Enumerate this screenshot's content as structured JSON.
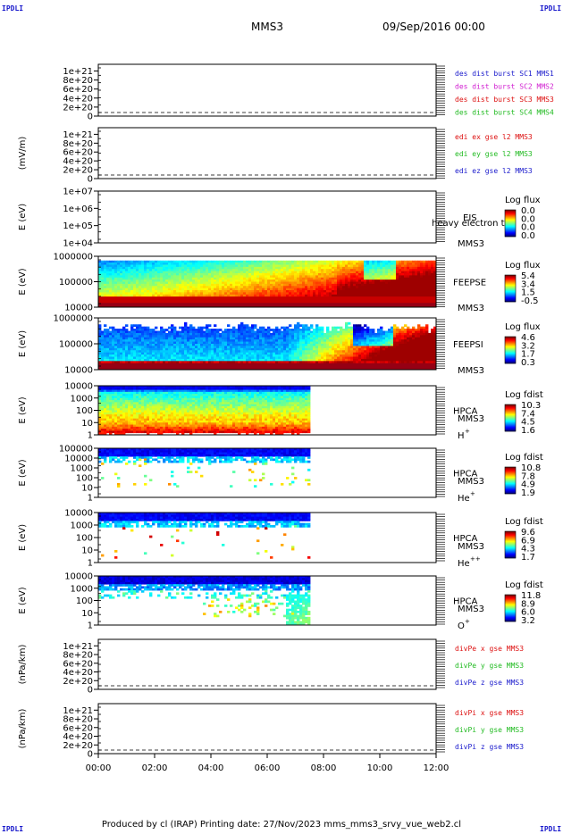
{
  "page": {
    "corner_tl": "IPDLI",
    "corner_tr": "IPDLI",
    "corner_bl": "IPDLI",
    "corner_br": "IPDLI",
    "spacecraft": "MMS3",
    "datetime": "09/Sep/2016 00:00",
    "footer": "Produced by cl (IRAP)   Printing date: 27/Nov/2023   mms_mms3_srvy_vue_web2.cl"
  },
  "colors": {
    "blue": "#1a1acc",
    "magenta": "#d11fd1",
    "red": "#dd1111",
    "green": "#22bb22"
  },
  "chart_data": {
    "type": "heatmap",
    "x_tick_labels": [
      "00:00",
      "02:00",
      "04:00",
      "06:00",
      "08:00",
      "10:00",
      "12:00"
    ],
    "x_range_hours": [
      0,
      12
    ],
    "data_end_hour": 7.5,
    "panels": [
      {
        "id": "des_dist",
        "kind": "line",
        "ylabel": "",
        "ytick_labels": [
          "1e+21",
          "8e+20",
          "6e+20",
          "4e+20",
          "2e+20",
          "0"
        ],
        "ytick_values": [
          1e+21,
          8e+20,
          6e+20,
          4e+20,
          2e+20,
          0
        ],
        "legend": [
          {
            "text": "des dist burst SC1 MMS1",
            "color": "blue"
          },
          {
            "text": "des dist burst SC2 MMS2",
            "color": "magenta"
          },
          {
            "text": "des dist burst SC3 MMS3",
            "color": "red"
          },
          {
            "text": "des dist burst SC4 MMS4",
            "color": "green"
          }
        ]
      },
      {
        "id": "edi",
        "kind": "line",
        "ylabel": "(mV/m)",
        "ytick_labels": [
          "1e+21",
          "8e+20",
          "6e+20",
          "4e+20",
          "2e+20",
          "0"
        ],
        "ytick_values": [
          1e+21,
          8e+20,
          6e+20,
          4e+20,
          2e+20,
          0
        ],
        "legend": [
          {
            "text": "edi ex gse l2 MMS3",
            "color": "red"
          },
          {
            "text": "edi ey gse l2 MMS3",
            "color": "green"
          },
          {
            "text": "edi ez gse l2 MMS3",
            "color": "blue"
          }
        ]
      },
      {
        "id": "eis",
        "kind": "empty_spec",
        "ylabel": "E (eV)",
        "log": true,
        "ytick_labels": [
          "1e+07",
          "1e+06",
          "1e+05",
          "1e+04"
        ],
        "ytick_values": [
          10000000.0,
          1000000.0,
          100000.0,
          10000.0
        ],
        "instrument": "EIS",
        "instrument_extra": "heavy electron to",
        "spacecraft": "MMS3",
        "colorbar_title": "Log flux",
        "colorbar_labels": [
          "0.0",
          "0.0",
          "0.0",
          "0.0"
        ]
      },
      {
        "id": "feepse",
        "kind": "spectrogram",
        "pattern": "feeps_e",
        "ylabel": "E (eV)",
        "log": true,
        "ytick_labels": [
          "1000000",
          "100000",
          "10000"
        ],
        "ytick_values": [
          1000000.0,
          100000.0,
          10000.0
        ],
        "instrument": "FEEPSE",
        "spacecraft": "MMS3",
        "colorbar_title": "Log flux",
        "colorbar_labels": [
          "5.4",
          "3.4",
          "1.5",
          "-0.5"
        ]
      },
      {
        "id": "feepsi",
        "kind": "spectrogram",
        "pattern": "feeps_i",
        "ylabel": "E (eV)",
        "log": true,
        "ytick_labels": [
          "1000000",
          "100000",
          "10000"
        ],
        "ytick_values": [
          1000000.0,
          100000.0,
          10000.0
        ],
        "instrument": "FEEPSI",
        "spacecraft": "MMS3",
        "colorbar_title": "Log flux",
        "colorbar_labels": [
          "4.6",
          "3.2",
          "1.7",
          "0.3"
        ]
      },
      {
        "id": "hpca_h",
        "kind": "spectrogram",
        "pattern": "hpca_h",
        "ylabel": "E (eV)",
        "log": true,
        "ytick_labels": [
          "10000",
          "1000",
          "100",
          "10",
          "1"
        ],
        "ytick_values": [
          10000.0,
          1000.0,
          100,
          10,
          1
        ],
        "instrument": "HPCA",
        "spacecraft": "MMS3",
        "species": "H",
        "species_sup": "+",
        "colorbar_title": "Log fdist",
        "colorbar_labels": [
          "10.3",
          "7.4",
          "4.5",
          "1.6"
        ]
      },
      {
        "id": "hpca_he",
        "kind": "spectrogram",
        "pattern": "hpca_he",
        "ylabel": "E (eV)",
        "log": true,
        "ytick_labels": [
          "100000",
          "10000",
          "1000",
          "100",
          "10",
          "1"
        ],
        "ytick_values": [
          100000.0,
          10000.0,
          1000.0,
          100,
          10,
          1
        ],
        "instrument": "HPCA",
        "spacecraft": "MMS3",
        "species": "He",
        "species_sup": "+",
        "colorbar_title": "Log fdist",
        "colorbar_labels": [
          "10.8",
          "7.8",
          "4.9",
          "1.9"
        ]
      },
      {
        "id": "hpca_hepp",
        "kind": "spectrogram",
        "pattern": "hpca_hepp",
        "ylabel": "E (eV)",
        "log": true,
        "ytick_labels": [
          "10000",
          "1000",
          "100",
          "10",
          "1"
        ],
        "ytick_values": [
          10000.0,
          1000.0,
          100,
          10,
          1
        ],
        "instrument": "HPCA",
        "spacecraft": "MMS3",
        "species": "He",
        "species_sup": "++",
        "colorbar_title": "Log fdist",
        "colorbar_labels": [
          "9.6",
          "6.9",
          "4.3",
          "1.7"
        ]
      },
      {
        "id": "hpca_o",
        "kind": "spectrogram",
        "pattern": "hpca_o",
        "ylabel": "E (eV)",
        "log": true,
        "ytick_labels": [
          "10000",
          "1000",
          "100",
          "10",
          "1"
        ],
        "ytick_values": [
          10000.0,
          1000.0,
          100,
          10,
          1
        ],
        "instrument": "HPCA",
        "spacecraft": "MMS3",
        "species": "O",
        "species_sup": "+",
        "colorbar_title": "Log fdist",
        "colorbar_labels": [
          "11.8",
          "8.9",
          "6.0",
          "3.2"
        ]
      },
      {
        "id": "divpe",
        "kind": "line",
        "ylabel": "(nPa/km)",
        "ytick_labels": [
          "1e+21",
          "8e+20",
          "6e+20",
          "4e+20",
          "2e+20",
          "0"
        ],
        "ytick_values": [
          1e+21,
          8e+20,
          6e+20,
          4e+20,
          2e+20,
          0
        ],
        "legend": [
          {
            "text": "divPe x gse MMS3",
            "color": "red"
          },
          {
            "text": "divPe y gse MMS3",
            "color": "green"
          },
          {
            "text": "divPe z gse MMS3",
            "color": "blue"
          }
        ]
      },
      {
        "id": "divpi",
        "kind": "line",
        "ylabel": "(nPa/km)",
        "ytick_labels": [
          "1e+21",
          "8e+20",
          "6e+20",
          "4e+20",
          "2e+20",
          "0"
        ],
        "ytick_values": [
          1e+21,
          8e+20,
          6e+20,
          4e+20,
          2e+20,
          0
        ],
        "legend": [
          {
            "text": "divPi x gse MMS3",
            "color": "red"
          },
          {
            "text": "divPi y gse MMS3",
            "color": "green"
          },
          {
            "text": "divPi z gse MMS3",
            "color": "blue"
          }
        ]
      }
    ]
  }
}
